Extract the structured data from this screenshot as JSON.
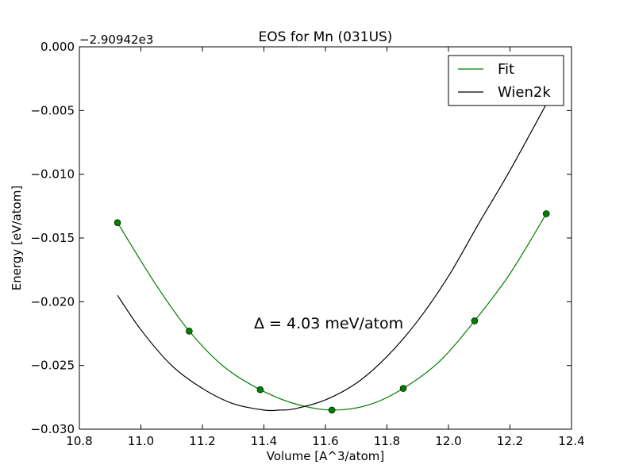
{
  "chart_data": {
    "type": "line",
    "title": "EOS for Mn (031US)",
    "xlabel": "Volume [A^3/atom]",
    "ylabel": "Energy [eV/atom]",
    "offset_label": "−2.90942e3",
    "xlim": [
      10.8,
      12.4
    ],
    "ylim": [
      -0.03,
      0.0
    ],
    "xticks": [
      10.8,
      11.0,
      11.2,
      11.4,
      11.6,
      11.8,
      12.0,
      12.2,
      12.4
    ],
    "xtick_labels": [
      "10.8",
      "11.0",
      "11.2",
      "11.4",
      "11.6",
      "11.8",
      "12.0",
      "12.2",
      "12.4"
    ],
    "yticks": [
      0.0,
      -0.005,
      -0.01,
      -0.015,
      -0.02,
      -0.025,
      -0.03
    ],
    "ytick_labels": [
      "0.000",
      "−0.005",
      "−0.010",
      "−0.015",
      "−0.020",
      "−0.025",
      "−0.030"
    ],
    "grid": false,
    "legend_position": "top-right",
    "annotation": "Δ = 4.03 meV/atom",
    "points": {
      "x": [
        10.924,
        11.157,
        11.388,
        11.621,
        11.853,
        12.085,
        12.318
      ],
      "y": [
        -0.0138,
        -0.0223,
        -0.0269,
        -0.0285,
        -0.0268,
        -0.0215,
        -0.0131
      ],
      "color": "#007f00"
    },
    "series": [
      {
        "name": "Fit",
        "color": "#007f00",
        "x": [
          10.924,
          11.05,
          11.157,
          11.27,
          11.388,
          11.5,
          11.621,
          11.74,
          11.853,
          11.97,
          12.085,
          12.2,
          12.318
        ],
        "y": [
          -0.0138,
          -0.0187,
          -0.0223,
          -0.0251,
          -0.0269,
          -0.028,
          -0.0285,
          -0.0281,
          -0.0268,
          -0.0247,
          -0.0215,
          -0.0178,
          -0.0131
        ]
      },
      {
        "name": "Wien2k",
        "color": "#000000",
        "x": [
          10.924,
          11.0,
          11.1,
          11.2,
          11.3,
          11.4,
          11.45,
          11.5,
          11.6,
          11.7,
          11.8,
          11.9,
          12.0,
          12.1,
          12.2,
          12.318
        ],
        "y": [
          -0.0195,
          -0.0222,
          -0.025,
          -0.0268,
          -0.028,
          -0.0285,
          -0.0285,
          -0.0284,
          -0.0277,
          -0.0264,
          -0.0243,
          -0.0215,
          -0.018,
          -0.0138,
          -0.0097,
          -0.0045
        ]
      }
    ]
  }
}
